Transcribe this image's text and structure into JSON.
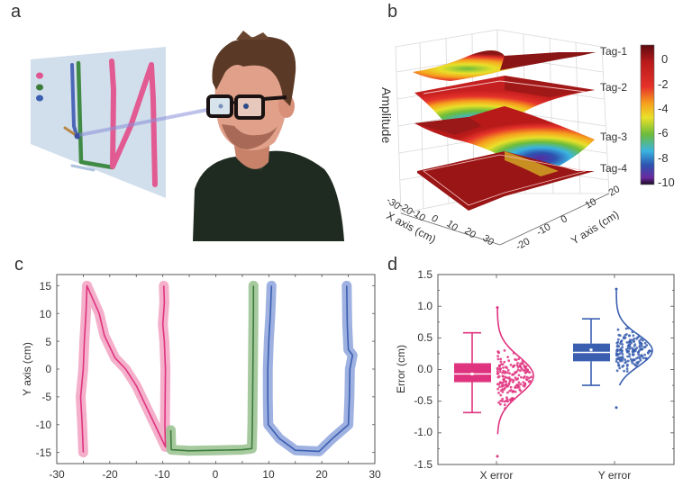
{
  "panels": {
    "a": {
      "label": "a",
      "description": "3D avatar wearing glasses with gaze line to virtual handwriting screen"
    },
    "b": {
      "label": "b"
    },
    "c": {
      "label": "c"
    },
    "d": {
      "label": "d"
    }
  },
  "colors": {
    "pink": "#e0337f",
    "pink_light": "#f3a6c4",
    "green": "#3c7d3c",
    "green_light": "#9cc393",
    "blue": "#3a5fb0",
    "blue_light": "#94a8de",
    "axis": "#555555"
  },
  "chart_data": [
    {
      "panel": "b",
      "type": "surface3d",
      "zlabel": "Amplitude",
      "xlabel": "X axis (cm)",
      "ylabel": "Y axis (cm)",
      "xticks": [
        "-30",
        "-20",
        "-10",
        "0",
        "10",
        "20",
        "30"
      ],
      "yticks": [
        "-20",
        "-10",
        "0",
        "10",
        "20"
      ],
      "surfaces": [
        "Tag-1",
        "Tag-2",
        "Tag-3",
        "Tag-4"
      ],
      "colorbar": {
        "ticks": [
          "0",
          "-2",
          "-4",
          "-6",
          "-8",
          "-10"
        ],
        "range": [
          -10,
          0.5
        ]
      }
    },
    {
      "panel": "c",
      "type": "line",
      "xlabel": "",
      "ylabel": "Y axis (cm)",
      "xlim": [
        -30,
        30
      ],
      "ylim": [
        -17,
        17
      ],
      "xticks": [
        "-30",
        "-20",
        "-10",
        "0",
        "10",
        "20",
        "30"
      ],
      "yticks": [
        "15",
        "10",
        "5",
        "0",
        "-5",
        "-10",
        "-15"
      ],
      "series": [
        {
          "name": "N",
          "color": "pink",
          "points": [
            [
              -25,
              -15
            ],
            [
              -25.2,
              -10
            ],
            [
              -25.5,
              -5
            ],
            [
              -25,
              0
            ],
            [
              -24.8,
              5
            ],
            [
              -24.5,
              10
            ],
            [
              -24.3,
              15
            ],
            [
              -22,
              10
            ],
            [
              -21,
              6
            ],
            [
              -19,
              2
            ],
            [
              -17,
              0
            ],
            [
              -15,
              -3
            ],
            [
              -13,
              -7
            ],
            [
              -11,
              -11
            ],
            [
              -9.5,
              -14
            ],
            [
              -9.6,
              -10
            ],
            [
              -9.5,
              0
            ],
            [
              -9.7,
              5
            ],
            [
              -10,
              8
            ],
            [
              -9.7,
              12
            ],
            [
              -9.8,
              15
            ]
          ]
        },
        {
          "name": "J",
          "color": "green",
          "points": [
            [
              -8.5,
              -11
            ],
            [
              -8.4,
              -14.5
            ],
            [
              -5,
              -14.7
            ],
            [
              0,
              -14.6
            ],
            [
              5,
              -14.5
            ],
            [
              6.8,
              -14.3
            ],
            [
              6.9,
              -10
            ],
            [
              7,
              0
            ],
            [
              7.1,
              10
            ],
            [
              7.1,
              15
            ]
          ]
        },
        {
          "name": "U",
          "color": "blue",
          "points": [
            [
              10.5,
              15
            ],
            [
              10.3,
              10
            ],
            [
              10,
              5
            ],
            [
              9.8,
              0
            ],
            [
              9.8,
              -5
            ],
            [
              9.9,
              -10
            ],
            [
              12,
              -12.5
            ],
            [
              15,
              -14.6
            ],
            [
              19.5,
              -14.8
            ],
            [
              22,
              -12.5
            ],
            [
              25,
              -10
            ],
            [
              25.2,
              -5
            ],
            [
              25.3,
              0
            ],
            [
              25.8,
              2.5
            ],
            [
              25,
              3.5
            ],
            [
              24.8,
              8
            ],
            [
              24.7,
              15
            ]
          ]
        }
      ]
    },
    {
      "panel": "d",
      "type": "box",
      "ylabel": "Error (cm)",
      "ylim": [
        -1.5,
        1.5
      ],
      "yticks": [
        "1.5",
        "1.0",
        "0.5",
        "0.0",
        "-0.5",
        "-1.0",
        "-1.5"
      ],
      "categories": [
        "X error",
        "Y error"
      ],
      "series": [
        {
          "name": "X error",
          "color": "pink",
          "whisker_low": -0.68,
          "q1": -0.2,
          "median": -0.07,
          "mean": -0.07,
          "q3": 0.1,
          "whisker_high": 0.58,
          "data_min": -1.37,
          "data_max": 0.98,
          "dist_mean": -0.1,
          "dist_sd": 0.3
        },
        {
          "name": "Y error",
          "color": "blue",
          "whisker_low": -0.25,
          "q1": 0.13,
          "median": 0.27,
          "mean": 0.31,
          "q3": 0.41,
          "whisker_high": 0.8,
          "data_min": -0.6,
          "data_max": 1.27,
          "dist_mean": 0.3,
          "dist_sd": 0.25
        }
      ]
    }
  ]
}
